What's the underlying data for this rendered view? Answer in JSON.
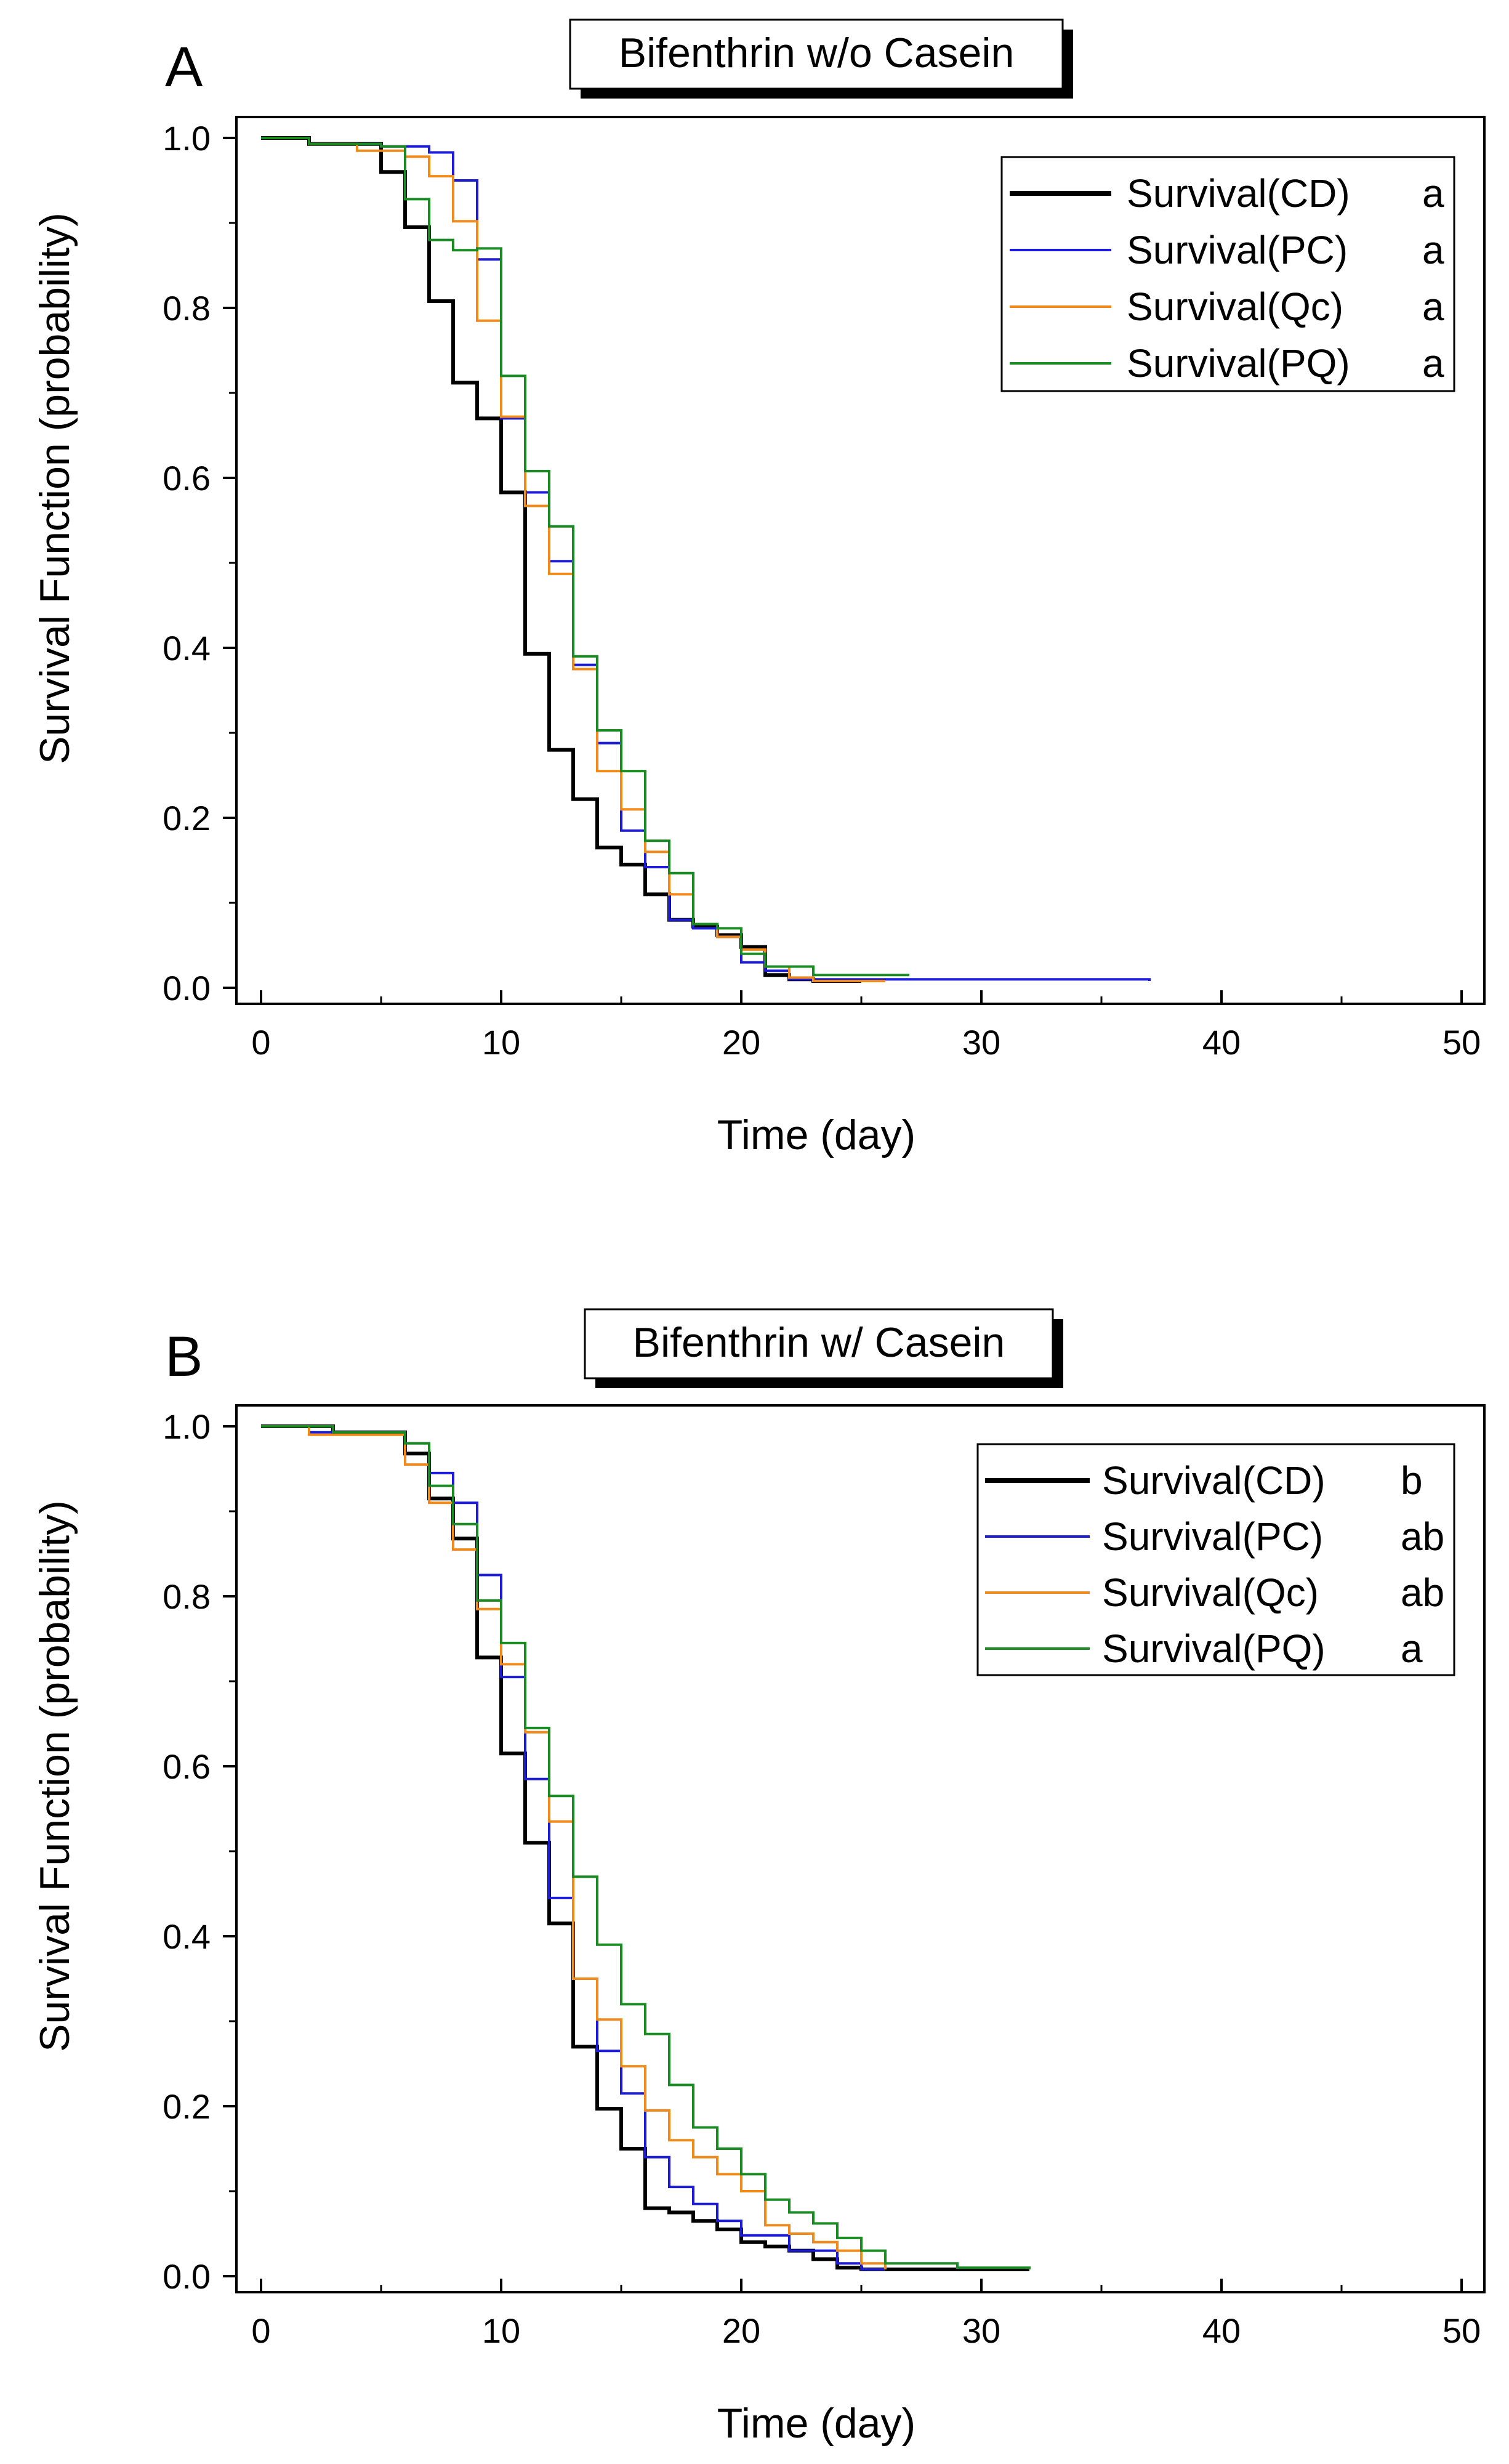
{
  "chart_data": [
    {
      "type": "line",
      "step": true,
      "panel_label": "A",
      "title": "Bifenthrin w/o Casein",
      "xlabel": "Time (day)",
      "ylabel": "Survival Function (probability)",
      "xlim": [
        0,
        50
      ],
      "ylim": [
        0,
        1
      ],
      "x_ticks": [
        "0",
        "10",
        "20",
        "30",
        "40",
        "50"
      ],
      "y_ticks": [
        "0.0",
        "0.2",
        "0.4",
        "0.6",
        "0.8",
        "1.0"
      ],
      "legend_position": "top-right",
      "series": [
        {
          "name": "Survival(CD)",
          "group": "a",
          "color": "#000000",
          "points": [
            [
              0,
              1.0
            ],
            [
              2,
              0.993
            ],
            [
              5,
              0.96
            ],
            [
              6,
              0.895
            ],
            [
              7,
              0.808
            ],
            [
              8,
              0.712
            ],
            [
              9,
              0.67
            ],
            [
              10,
              0.583
            ],
            [
              11,
              0.393
            ],
            [
              12,
              0.28
            ],
            [
              13,
              0.222
            ],
            [
              14,
              0.165
            ],
            [
              15,
              0.145
            ],
            [
              16,
              0.11
            ],
            [
              17,
              0.08
            ],
            [
              18,
              0.072
            ],
            [
              19,
              0.062
            ],
            [
              20,
              0.048
            ],
            [
              21,
              0.015
            ],
            [
              22,
              0.01
            ],
            [
              23,
              0.008
            ],
            [
              25,
              0.008
            ]
          ]
        },
        {
          "name": "Survival(PC)",
          "group": "a",
          "color": "#1c1cd6",
          "points": [
            [
              0,
              1.0
            ],
            [
              2,
              0.993
            ],
            [
              5,
              0.99
            ],
            [
              7,
              0.983
            ],
            [
              8,
              0.95
            ],
            [
              9,
              0.857
            ],
            [
              10,
              0.67
            ],
            [
              11,
              0.583
            ],
            [
              12,
              0.502
            ],
            [
              13,
              0.38
            ],
            [
              14,
              0.288
            ],
            [
              15,
              0.185
            ],
            [
              16,
              0.142
            ],
            [
              17,
              0.08
            ],
            [
              18,
              0.07
            ],
            [
              19,
              0.06
            ],
            [
              20,
              0.03
            ],
            [
              21,
              0.02
            ],
            [
              22,
              0.01
            ],
            [
              37,
              0.008
            ]
          ]
        },
        {
          "name": "Survival(Qc)",
          "group": "a",
          "color": "#f08a1a",
          "points": [
            [
              0,
              1.0
            ],
            [
              2,
              0.993
            ],
            [
              4,
              0.985
            ],
            [
              6,
              0.978
            ],
            [
              7,
              0.955
            ],
            [
              8,
              0.902
            ],
            [
              9,
              0.785
            ],
            [
              10,
              0.672
            ],
            [
              11,
              0.567
            ],
            [
              12,
              0.487
            ],
            [
              13,
              0.375
            ],
            [
              14,
              0.255
            ],
            [
              15,
              0.21
            ],
            [
              16,
              0.16
            ],
            [
              17,
              0.11
            ],
            [
              18,
              0.075
            ],
            [
              19,
              0.06
            ],
            [
              20,
              0.045
            ],
            [
              21,
              0.025
            ],
            [
              22,
              0.012
            ],
            [
              23,
              0.008
            ],
            [
              26,
              0.008
            ]
          ]
        },
        {
          "name": "Survival(PQ)",
          "group": "a",
          "color": "#1a8a22",
          "points": [
            [
              0,
              1.0
            ],
            [
              2,
              0.993
            ],
            [
              5,
              0.99
            ],
            [
              6,
              0.928
            ],
            [
              7,
              0.88
            ],
            [
              8,
              0.868
            ],
            [
              9,
              0.87
            ],
            [
              10,
              0.72
            ],
            [
              11,
              0.608
            ],
            [
              12,
              0.543
            ],
            [
              13,
              0.39
            ],
            [
              14,
              0.303
            ],
            [
              15,
              0.255
            ],
            [
              16,
              0.173
            ],
            [
              17,
              0.135
            ],
            [
              18,
              0.075
            ],
            [
              19,
              0.07
            ],
            [
              20,
              0.04
            ],
            [
              21,
              0.025
            ],
            [
              23,
              0.015
            ],
            [
              27,
              0.015
            ]
          ]
        }
      ]
    },
    {
      "type": "line",
      "step": true,
      "panel_label": "B",
      "title": "Bifenthrin w/ Casein",
      "xlabel": "Time (day)",
      "ylabel": "Survival Function (probability)",
      "xlim": [
        0,
        50
      ],
      "ylim": [
        0,
        1
      ],
      "x_ticks": [
        "0",
        "10",
        "20",
        "30",
        "40",
        "50"
      ],
      "y_ticks": [
        "0.0",
        "0.2",
        "0.4",
        "0.6",
        "0.8",
        "1.0"
      ],
      "legend_position": "top-right",
      "series": [
        {
          "name": "Survival(CD)",
          "group": "b",
          "color": "#000000",
          "points": [
            [
              0,
              1.0
            ],
            [
              3,
              0.993
            ],
            [
              6,
              0.968
            ],
            [
              7,
              0.915
            ],
            [
              8,
              0.868
            ],
            [
              9,
              0.728
            ],
            [
              10,
              0.615
            ],
            [
              11,
              0.51
            ],
            [
              12,
              0.415
            ],
            [
              13,
              0.27
            ],
            [
              14,
              0.197
            ],
            [
              15,
              0.15
            ],
            [
              16,
              0.08
            ],
            [
              17,
              0.075
            ],
            [
              18,
              0.065
            ],
            [
              19,
              0.055
            ],
            [
              20,
              0.04
            ],
            [
              21,
              0.035
            ],
            [
              22,
              0.03
            ],
            [
              23,
              0.02
            ],
            [
              24,
              0.01
            ],
            [
              25,
              0.008
            ],
            [
              32,
              0.008
            ]
          ]
        },
        {
          "name": "Survival(PC)",
          "group": "ab",
          "color": "#1c1cd6",
          "points": [
            [
              0,
              1.0
            ],
            [
              2,
              0.993
            ],
            [
              6,
              0.98
            ],
            [
              7,
              0.945
            ],
            [
              8,
              0.91
            ],
            [
              9,
              0.825
            ],
            [
              10,
              0.705
            ],
            [
              11,
              0.585
            ],
            [
              12,
              0.445
            ],
            [
              13,
              0.35
            ],
            [
              14,
              0.265
            ],
            [
              15,
              0.215
            ],
            [
              16,
              0.14
            ],
            [
              17,
              0.105
            ],
            [
              18,
              0.085
            ],
            [
              19,
              0.065
            ],
            [
              20,
              0.048
            ],
            [
              22,
              0.03
            ],
            [
              24,
              0.015
            ],
            [
              25,
              0.008
            ],
            [
              26,
              0.008
            ]
          ]
        },
        {
          "name": "Survival(Qc)",
          "group": "ab",
          "color": "#f08a1a",
          "points": [
            [
              0,
              1.0
            ],
            [
              2,
              0.99
            ],
            [
              6,
              0.955
            ],
            [
              7,
              0.91
            ],
            [
              8,
              0.855
            ],
            [
              9,
              0.785
            ],
            [
              10,
              0.72
            ],
            [
              11,
              0.64
            ],
            [
              12,
              0.535
            ],
            [
              13,
              0.35
            ],
            [
              14,
              0.302
            ],
            [
              15,
              0.247
            ],
            [
              16,
              0.195
            ],
            [
              17,
              0.16
            ],
            [
              18,
              0.14
            ],
            [
              19,
              0.12
            ],
            [
              20,
              0.1
            ],
            [
              21,
              0.06
            ],
            [
              22,
              0.05
            ],
            [
              23,
              0.04
            ],
            [
              24,
              0.03
            ],
            [
              25,
              0.015
            ],
            [
              26,
              0.008
            ]
          ]
        },
        {
          "name": "Survival(PQ)",
          "group": "a",
          "color": "#1a8a22",
          "points": [
            [
              0,
              1.0
            ],
            [
              3,
              0.993
            ],
            [
              6,
              0.98
            ],
            [
              7,
              0.93
            ],
            [
              8,
              0.885
            ],
            [
              9,
              0.795
            ],
            [
              10,
              0.745
            ],
            [
              11,
              0.645
            ],
            [
              12,
              0.565
            ],
            [
              13,
              0.47
            ],
            [
              14,
              0.39
            ],
            [
              15,
              0.32
            ],
            [
              16,
              0.285
            ],
            [
              17,
              0.225
            ],
            [
              18,
              0.175
            ],
            [
              19,
              0.15
            ],
            [
              20,
              0.12
            ],
            [
              21,
              0.09
            ],
            [
              22,
              0.075
            ],
            [
              23,
              0.062
            ],
            [
              24,
              0.045
            ],
            [
              25,
              0.03
            ],
            [
              26,
              0.015
            ],
            [
              29,
              0.01
            ],
            [
              32,
              0.008
            ]
          ]
        }
      ]
    }
  ]
}
